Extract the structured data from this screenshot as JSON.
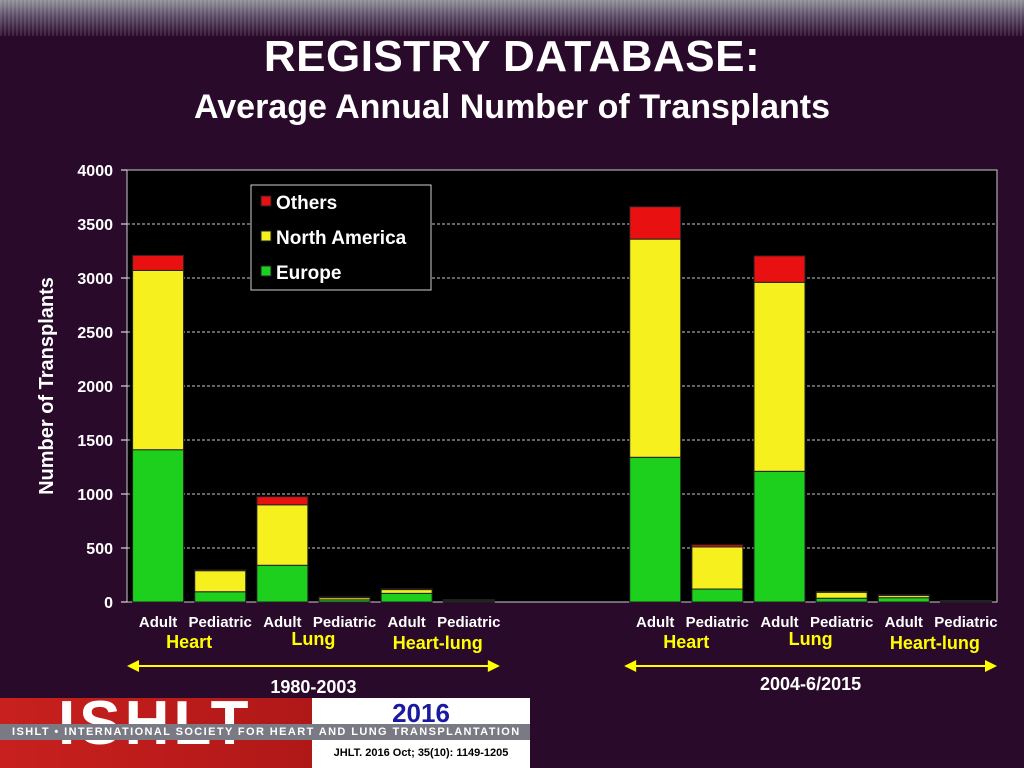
{
  "header": {
    "title": "REGISTRY DATABASE:",
    "subtitle": "Average Annual Number of Transplants"
  },
  "footer": {
    "logo_text": "ISHLT",
    "org_line": "ISHLT • INTERNATIONAL SOCIETY FOR HEART AND LUNG TRANSPLANTATION",
    "year": "2016",
    "citation": "JHLT. 2016 Oct; 35(10): 1149-1205"
  },
  "chart_data": {
    "type": "bar",
    "stacked": true,
    "ylabel": "Number of Transplants",
    "ylim": [
      0,
      4000
    ],
    "yticks": [
      0,
      500,
      1000,
      1500,
      2000,
      2500,
      3000,
      3500,
      4000
    ],
    "grid": true,
    "legend_placement": "top-left",
    "groups": [
      {
        "period": "1980-2003",
        "organs": [
          "Heart",
          "Lung",
          "Heart-lung"
        ]
      },
      {
        "period": "2004-6/2015",
        "organs": [
          "Heart",
          "Lung",
          "Heart-lung"
        ]
      }
    ],
    "categories": [
      "Adult",
      "Pediatric",
      "Adult",
      "Pediatric",
      "Adult",
      "Pediatric",
      "Adult",
      "Pediatric",
      "Adult",
      "Pediatric",
      "Adult",
      "Pediatric"
    ],
    "series": [
      {
        "name": "Europe",
        "color": "#1ed01e",
        "values": [
          1410,
          95,
          340,
          20,
          80,
          10,
          1340,
          120,
          1210,
          35,
          40,
          5
        ]
      },
      {
        "name": "North America",
        "color": "#f5f01e",
        "values": [
          1660,
          195,
          560,
          20,
          35,
          5,
          2020,
          390,
          1750,
          55,
          20,
          2
        ]
      },
      {
        "name": "Others",
        "color": "#e81010",
        "values": [
          140,
          5,
          75,
          2,
          5,
          1,
          300,
          20,
          245,
          5,
          5,
          1
        ]
      }
    ],
    "legend_order": [
      "Others",
      "North America",
      "Europe"
    ]
  }
}
